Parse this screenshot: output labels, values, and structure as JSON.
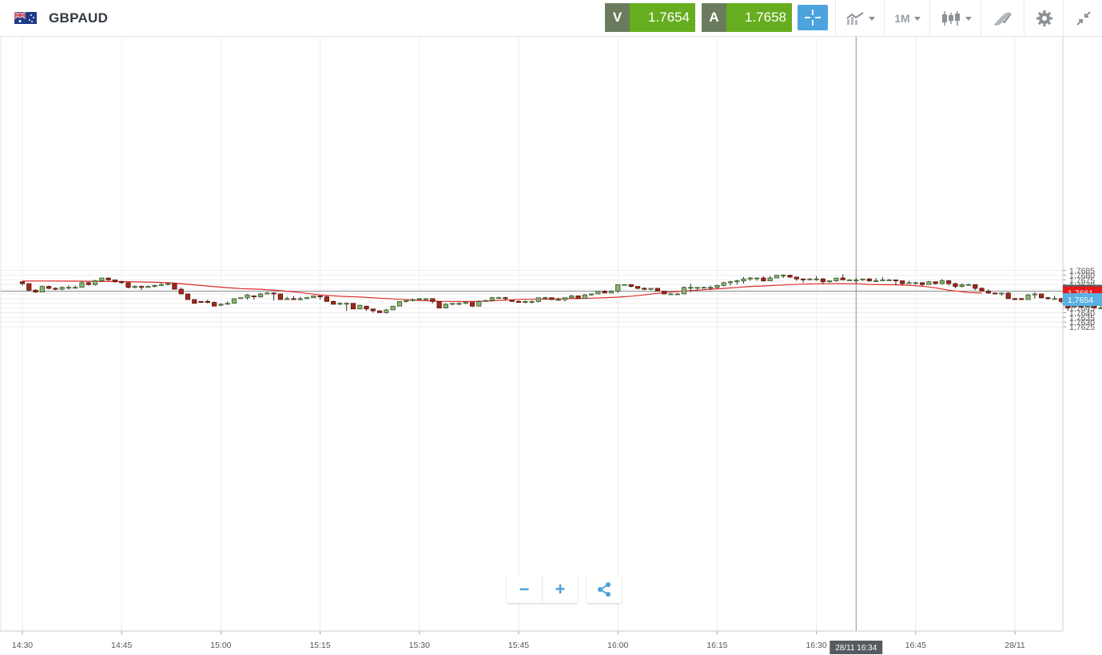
{
  "header": {
    "symbol": "GBPAUD",
    "flag_icon": "gb-au-flag-icon",
    "sell": {
      "label": "V",
      "value": "1.7654"
    },
    "buy": {
      "label": "A",
      "value": "1.7658"
    },
    "timeframe": "1M",
    "icons": [
      "crosshair-icon",
      "line-chart-icon",
      "candlestick-icon",
      "drawing-tools-icon",
      "gear-icon",
      "collapse-icon"
    ]
  },
  "controls": {
    "zoom_out": "−",
    "zoom_in": "+",
    "share_icon": "share-icon"
  },
  "colors": {
    "up": "#8ab373",
    "up_border": "#3a5a2c",
    "down": "#a0281b",
    "down_border": "#5a160e",
    "ma": "#e02828",
    "grid": "#eeeeee",
    "sell_bg": "#66ad1f",
    "accent": "#4da3dd",
    "last_price_bg": "#5ab0e3",
    "ma_bg": "#e51b1b",
    "crosshair_bg": "#555b60"
  },
  "chart_data": {
    "type": "candlestick",
    "interval": "1M",
    "ylim": [
      1.7623,
      1.7688
    ],
    "y_ticks": [
      "1,7625",
      "1,7630",
      "1,7635",
      "1,7640",
      "1,7645",
      "1,7650",
      "1,7655",
      "1,7660",
      "1,7665",
      "1,7670",
      "1,7675",
      "1,7680",
      "1,7685"
    ],
    "x_ticks": [
      {
        "t": 0,
        "label": "14:30"
      },
      {
        "t": 15,
        "label": "14:45"
      },
      {
        "t": 30,
        "label": "15:00"
      },
      {
        "t": 45,
        "label": "15:15"
      },
      {
        "t": 60,
        "label": "15:30"
      },
      {
        "t": 75,
        "label": "15:45"
      },
      {
        "t": 90,
        "label": "16:00"
      },
      {
        "t": 105,
        "label": "16:15"
      },
      {
        "t": 120,
        "label": "16:30"
      },
      {
        "t": 135,
        "label": "16:45"
      },
      {
        "t": 150,
        "label": "28/11"
      }
    ],
    "labels": {
      "crosshair_price": "1,7663",
      "ma_price": "1,7661",
      "last_price": "1,7654",
      "crosshair_time": "28/11 16:34"
    },
    "crosshair_value": 1.7663,
    "crosshair_t": 126,
    "last_price": 1.7654,
    "ma_last": 1.76612,
    "candles": [
      [
        1.7673,
        1.7671,
        1.7673,
        1.7669
      ],
      [
        1.7671,
        1.7664,
        1.7671,
        1.7663
      ],
      [
        1.7664,
        1.7662,
        1.7665,
        1.7661
      ],
      [
        1.7662,
        1.7668,
        1.7669,
        1.7662
      ],
      [
        1.7668,
        1.7666,
        1.7669,
        1.7665
      ],
      [
        1.7666,
        1.7665,
        1.7667,
        1.7664
      ],
      [
        1.7665,
        1.7667,
        1.7668,
        1.7664
      ],
      [
        1.7667,
        1.7667,
        1.7669,
        1.7665
      ],
      [
        1.7667,
        1.7667,
        1.7669,
        1.7666
      ],
      [
        1.7667,
        1.7672,
        1.7674,
        1.7667
      ],
      [
        1.7672,
        1.767,
        1.7673,
        1.7669
      ],
      [
        1.767,
        1.7674,
        1.7675,
        1.7669
      ],
      [
        1.7674,
        1.7677,
        1.7677,
        1.7673
      ],
      [
        1.7677,
        1.7675,
        1.7677,
        1.7674
      ],
      [
        1.7675,
        1.7673,
        1.7675,
        1.7672
      ],
      [
        1.7673,
        1.7672,
        1.7674,
        1.7671
      ],
      [
        1.7672,
        1.7667,
        1.7672,
        1.7666
      ],
      [
        1.7667,
        1.7668,
        1.7669,
        1.7666
      ],
      [
        1.7668,
        1.7667,
        1.7669,
        1.7664
      ],
      [
        1.7667,
        1.7668,
        1.7669,
        1.7667
      ],
      [
        1.7668,
        1.7669,
        1.767,
        1.7667
      ],
      [
        1.7669,
        1.767,
        1.7672,
        1.7669
      ],
      [
        1.7671,
        1.7671,
        1.7672,
        1.7669
      ],
      [
        1.7671,
        1.7665,
        1.7672,
        1.7665
      ],
      [
        1.7665,
        1.766,
        1.7667,
        1.766
      ],
      [
        1.766,
        1.7654,
        1.766,
        1.7654
      ],
      [
        1.7654,
        1.765,
        1.7654,
        1.765
      ],
      [
        1.7652,
        1.7651,
        1.7652,
        1.7651
      ],
      [
        1.7652,
        1.7651,
        1.7654,
        1.765
      ],
      [
        1.7651,
        1.7647,
        1.7652,
        1.7647
      ],
      [
        1.7648,
        1.7649,
        1.765,
        1.7647
      ],
      [
        1.7649,
        1.765,
        1.7652,
        1.7649
      ],
      [
        1.765,
        1.7655,
        1.7655,
        1.765
      ],
      [
        1.7655,
        1.7656,
        1.7656,
        1.7655
      ],
      [
        1.7656,
        1.7659,
        1.766,
        1.7654
      ],
      [
        1.7658,
        1.7657,
        1.7658,
        1.7654
      ],
      [
        1.7657,
        1.766,
        1.7661,
        1.7656
      ],
      [
        1.766,
        1.7661,
        1.7662,
        1.766
      ],
      [
        1.7661,
        1.766,
        1.7662,
        1.7653
      ],
      [
        1.766,
        1.7654,
        1.766,
        1.7654
      ],
      [
        1.7654,
        1.7655,
        1.7657,
        1.7654
      ],
      [
        1.7655,
        1.7654,
        1.7658,
        1.7654
      ],
      [
        1.7654,
        1.7655,
        1.7657,
        1.7653
      ],
      [
        1.7655,
        1.7656,
        1.7657,
        1.7655
      ],
      [
        1.7656,
        1.7658,
        1.7658,
        1.7656
      ],
      [
        1.7658,
        1.7657,
        1.7658,
        1.7654
      ],
      [
        1.7657,
        1.7652,
        1.7658,
        1.7652
      ],
      [
        1.7652,
        1.7649,
        1.7653,
        1.7649
      ],
      [
        1.765,
        1.765,
        1.7651,
        1.7648
      ],
      [
        1.765,
        1.765,
        1.7651,
        1.7642
      ],
      [
        1.765,
        1.7644,
        1.765,
        1.7644
      ],
      [
        1.7644,
        1.7648,
        1.7648,
        1.7644
      ],
      [
        1.7647,
        1.7644,
        1.7647,
        1.7642
      ],
      [
        1.7644,
        1.7642,
        1.7644,
        1.764
      ],
      [
        1.7642,
        1.764,
        1.7642,
        1.764
      ],
      [
        1.764,
        1.7643,
        1.7644,
        1.7639
      ],
      [
        1.7643,
        1.7647,
        1.7647,
        1.7643
      ],
      [
        1.7647,
        1.7652,
        1.7652,
        1.7647
      ],
      [
        1.7652,
        1.7653,
        1.7653,
        1.7651
      ],
      [
        1.7653,
        1.7654,
        1.7655,
        1.7652
      ],
      [
        1.7654,
        1.7655,
        1.7655,
        1.7653
      ],
      [
        1.7654,
        1.7655,
        1.7655,
        1.7653
      ],
      [
        1.7655,
        1.7652,
        1.7655,
        1.765
      ],
      [
        1.7652,
        1.7645,
        1.7652,
        1.7645
      ],
      [
        1.7645,
        1.7649,
        1.765,
        1.7645
      ],
      [
        1.7649,
        1.765,
        1.765,
        1.7648
      ],
      [
        1.7649,
        1.765,
        1.7651,
        1.7648
      ],
      [
        1.765,
        1.7651,
        1.7651,
        1.7649
      ],
      [
        1.7651,
        1.7647,
        1.7651,
        1.7646
      ],
      [
        1.7647,
        1.7652,
        1.7653,
        1.7647
      ],
      [
        1.7652,
        1.7653,
        1.7654,
        1.7652
      ],
      [
        1.7653,
        1.7656,
        1.7657,
        1.7652
      ],
      [
        1.7656,
        1.7656,
        1.7657,
        1.7656
      ],
      [
        1.7656,
        1.7655,
        1.7657,
        1.7653
      ],
      [
        1.7653,
        1.7652,
        1.7654,
        1.7652
      ],
      [
        1.7652,
        1.7651,
        1.7653,
        1.7651
      ],
      [
        1.7651,
        1.7652,
        1.7653,
        1.765
      ],
      [
        1.7652,
        1.7652,
        1.7653,
        1.765
      ],
      [
        1.7652,
        1.7656,
        1.7656,
        1.7651
      ],
      [
        1.7656,
        1.7656,
        1.7657,
        1.7654
      ],
      [
        1.7656,
        1.7654,
        1.7656,
        1.7654
      ],
      [
        1.7654,
        1.7654,
        1.7656,
        1.7654
      ],
      [
        1.7654,
        1.7656,
        1.7656,
        1.7652
      ],
      [
        1.7656,
        1.7658,
        1.7659,
        1.7656
      ],
      [
        1.7658,
        1.7655,
        1.7658,
        1.7655
      ],
      [
        1.7655,
        1.7659,
        1.766,
        1.7655
      ],
      [
        1.7659,
        1.766,
        1.766,
        1.7658
      ],
      [
        1.766,
        1.7663,
        1.7663,
        1.766
      ],
      [
        1.7663,
        1.7661,
        1.7664,
        1.7661
      ],
      [
        1.7661,
        1.7663,
        1.7664,
        1.7661
      ],
      [
        1.7663,
        1.767,
        1.767,
        1.7661
      ],
      [
        1.767,
        1.767,
        1.767,
        1.767
      ],
      [
        1.767,
        1.7668,
        1.767,
        1.7667
      ],
      [
        1.7668,
        1.7666,
        1.7668,
        1.7665
      ],
      [
        1.7666,
        1.7665,
        1.7667,
        1.7664
      ],
      [
        1.7665,
        1.7666,
        1.7666,
        1.7664
      ],
      [
        1.7666,
        1.7663,
        1.7666,
        1.7663
      ],
      [
        1.7663,
        1.766,
        1.7663,
        1.766
      ],
      [
        1.766,
        1.766,
        1.7661,
        1.766
      ],
      [
        1.766,
        1.766,
        1.7661,
        1.7659
      ],
      [
        1.766,
        1.7667,
        1.7668,
        1.766
      ],
      [
        1.7667,
        1.7667,
        1.7671,
        1.7662
      ],
      [
        1.7667,
        1.7667,
        1.7667,
        1.7664
      ],
      [
        1.7667,
        1.7667,
        1.7668,
        1.7666
      ],
      [
        1.7667,
        1.7667,
        1.7669,
        1.7664
      ],
      [
        1.7667,
        1.7669,
        1.767,
        1.7666
      ],
      [
        1.7669,
        1.7672,
        1.7673,
        1.7668
      ],
      [
        1.7672,
        1.7673,
        1.7674,
        1.7669
      ],
      [
        1.7673,
        1.7674,
        1.7675,
        1.767
      ],
      [
        1.7674,
        1.7676,
        1.7678,
        1.7671
      ],
      [
        1.7676,
        1.7677,
        1.7678,
        1.7674
      ],
      [
        1.7677,
        1.7677,
        1.7677,
        1.7674
      ],
      [
        1.7677,
        1.7674,
        1.7679,
        1.7673
      ],
      [
        1.7674,
        1.7677,
        1.7679,
        1.7674
      ],
      [
        1.7677,
        1.768,
        1.768,
        1.7677
      ],
      [
        1.768,
        1.768,
        1.7681,
        1.7677
      ],
      [
        1.768,
        1.7678,
        1.768,
        1.7677
      ],
      [
        1.7678,
        1.7676,
        1.7678,
        1.7674
      ],
      [
        1.7676,
        1.7675,
        1.7676,
        1.7672
      ],
      [
        1.7675,
        1.7676,
        1.7677,
        1.7675
      ],
      [
        1.7676,
        1.7676,
        1.7679,
        1.7674
      ],
      [
        1.7676,
        1.7673,
        1.7677,
        1.7671
      ],
      [
        1.7673,
        1.7674,
        1.7674,
        1.7672
      ],
      [
        1.7674,
        1.7677,
        1.7677,
        1.7673
      ],
      [
        1.7677,
        1.7675,
        1.7681,
        1.7675
      ],
      [
        1.7675,
        1.7675,
        1.7676,
        1.7674
      ],
      [
        1.7675,
        1.7675,
        1.7677,
        1.7671
      ],
      [
        1.7675,
        1.7676,
        1.7676,
        1.7674
      ],
      [
        1.7676,
        1.7674,
        1.7677,
        1.7673
      ],
      [
        1.7674,
        1.7674,
        1.7677,
        1.7674
      ],
      [
        1.7675,
        1.7675,
        1.7678,
        1.7674
      ],
      [
        1.7675,
        1.7675,
        1.7676,
        1.7674
      ],
      [
        1.7675,
        1.7674,
        1.7675,
        1.7669
      ],
      [
        1.7674,
        1.7671,
        1.7674,
        1.767
      ],
      [
        1.7672,
        1.7672,
        1.7674,
        1.7671
      ],
      [
        1.7672,
        1.7672,
        1.7673,
        1.767
      ],
      [
        1.7672,
        1.767,
        1.7672,
        1.7668
      ],
      [
        1.767,
        1.7673,
        1.7674,
        1.767
      ],
      [
        1.7673,
        1.7671,
        1.7673,
        1.767
      ],
      [
        1.7671,
        1.7674,
        1.7676,
        1.767
      ],
      [
        1.7674,
        1.7671,
        1.7675,
        1.7669
      ],
      [
        1.7671,
        1.7668,
        1.7672,
        1.7666
      ],
      [
        1.7668,
        1.767,
        1.7671,
        1.7667
      ],
      [
        1.767,
        1.767,
        1.7671,
        1.7669
      ],
      [
        1.767,
        1.7666,
        1.767,
        1.7664
      ],
      [
        1.7666,
        1.7663,
        1.7667,
        1.7663
      ],
      [
        1.7663,
        1.7661,
        1.7665,
        1.766
      ],
      [
        1.7661,
        1.766,
        1.7661,
        1.766
      ],
      [
        1.766,
        1.7661,
        1.7661,
        1.7658
      ],
      [
        1.7661,
        1.7655,
        1.7662,
        1.7655
      ],
      [
        1.7655,
        1.7654,
        1.7656,
        1.7654
      ],
      [
        1.7655,
        1.7654,
        1.7656,
        1.7654
      ],
      [
        1.7654,
        1.7659,
        1.766,
        1.7654
      ],
      [
        1.7659,
        1.766,
        1.7662,
        1.7655
      ],
      [
        1.766,
        1.7656,
        1.766,
        1.7655
      ],
      [
        1.7656,
        1.7655,
        1.7657,
        1.7654
      ],
      [
        1.7655,
        1.7655,
        1.7658,
        1.7654
      ],
      [
        1.7655,
        1.7652,
        1.7656,
        1.765
      ],
      [
        1.7652,
        1.7645,
        1.7652,
        1.7642
      ],
      [
        1.7646,
        1.7647,
        1.7649,
        1.7645
      ],
      [
        1.7647,
        1.7646,
        1.7648,
        1.7645
      ],
      [
        1.7646,
        1.7647,
        1.7649,
        1.7646
      ],
      [
        1.7647,
        1.7645,
        1.7648,
        1.7645
      ],
      [
        1.7645,
        1.7645,
        1.7648,
        1.7645
      ],
      [
        1.7647,
        1.7645,
        1.7648,
        1.7645
      ],
      [
        1.7647,
        1.7642,
        1.7647,
        1.7642
      ],
      [
        1.7642,
        1.7637,
        1.7642,
        1.7637
      ],
      [
        1.7637,
        1.7636,
        1.7641,
        1.7632
      ],
      [
        1.7636,
        1.7635,
        1.7637,
        1.7635
      ],
      [
        1.7635,
        1.7637,
        1.7639,
        1.7633
      ],
      [
        1.7637,
        1.7641,
        1.7641,
        1.7635
      ],
      [
        1.7641,
        1.7647,
        1.7647,
        1.764
      ],
      [
        1.7647,
        1.7654,
        1.7654,
        1.7647
      ]
    ],
    "moving_average": [
      [
        0,
        1.76738
      ],
      [
        4,
        1.76738
      ],
      [
        8,
        1.76736
      ],
      [
        12,
        1.76733
      ],
      [
        14,
        1.76734
      ],
      [
        16,
        1.76731
      ],
      [
        18,
        1.76728
      ],
      [
        20,
        1.76724
      ],
      [
        22,
        1.7672
      ],
      [
        24,
        1.7671
      ],
      [
        27,
        1.7669
      ],
      [
        30,
        1.76672
      ],
      [
        33,
        1.76657
      ],
      [
        36,
        1.7665
      ],
      [
        39,
        1.76635
      ],
      [
        42,
        1.76615
      ],
      [
        45,
        1.7659
      ],
      [
        48,
        1.76575
      ],
      [
        51,
        1.76568
      ],
      [
        54,
        1.76555
      ],
      [
        57,
        1.76543
      ],
      [
        60,
        1.76531
      ],
      [
        63,
        1.76522
      ],
      [
        66,
        1.7652
      ],
      [
        68,
        1.7652
      ],
      [
        70,
        1.76523
      ],
      [
        72,
        1.7653
      ],
      [
        74,
        1.76538
      ],
      [
        76,
        1.76543
      ],
      [
        78,
        1.76543
      ],
      [
        81,
        1.76548
      ],
      [
        84,
        1.76552
      ],
      [
        86,
        1.76555
      ],
      [
        88,
        1.7656
      ],
      [
        90,
        1.76566
      ],
      [
        92,
        1.76576
      ],
      [
        94,
        1.7659
      ],
      [
        96,
        1.76607
      ],
      [
        98,
        1.76621
      ],
      [
        100,
        1.7663
      ],
      [
        102,
        1.7664
      ],
      [
        104,
        1.7665
      ],
      [
        106,
        1.7666
      ],
      [
        108,
        1.7667
      ],
      [
        110,
        1.7668
      ],
      [
        112,
        1.76685
      ],
      [
        114,
        1.76692
      ],
      [
        116,
        1.767
      ],
      [
        118,
        1.76705
      ],
      [
        120,
        1.76708
      ],
      [
        122,
        1.76709
      ],
      [
        124,
        1.7671
      ],
      [
        126,
        1.76709
      ],
      [
        128,
        1.76701
      ],
      [
        130,
        1.76699
      ],
      [
        132,
        1.76698
      ],
      [
        134,
        1.76693
      ],
      [
        136,
        1.76683
      ],
      [
        138,
        1.76666
      ],
      [
        140,
        1.7664
      ],
      [
        143,
        1.76615
      ],
      [
        145,
        1.76609
      ]
    ]
  }
}
